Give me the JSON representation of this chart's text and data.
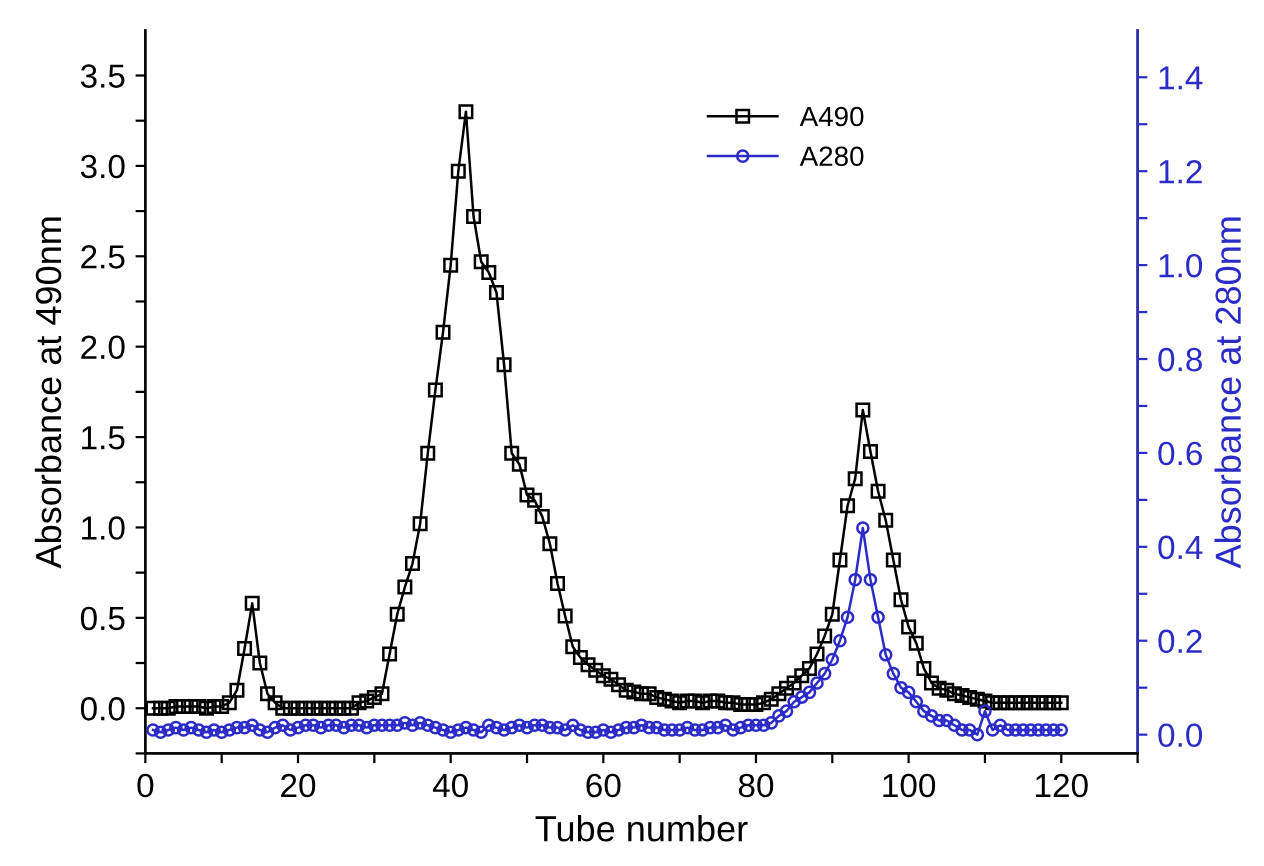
{
  "chart_data": {
    "type": "line",
    "xlabel": "Tube number",
    "ylabel": "Absorbance at 490nm",
    "y2label": "Absorbance at 280nm",
    "x": [
      1,
      2,
      3,
      4,
      5,
      6,
      7,
      8,
      9,
      10,
      11,
      12,
      13,
      14,
      15,
      16,
      17,
      18,
      19,
      20,
      21,
      22,
      23,
      24,
      25,
      26,
      27,
      28,
      29,
      30,
      31,
      32,
      33,
      34,
      35,
      36,
      37,
      38,
      39,
      40,
      41,
      42,
      43,
      44,
      45,
      46,
      47,
      48,
      49,
      50,
      51,
      52,
      53,
      54,
      55,
      56,
      57,
      58,
      59,
      60,
      61,
      62,
      63,
      64,
      65,
      66,
      67,
      68,
      69,
      70,
      71,
      72,
      73,
      74,
      75,
      76,
      77,
      78,
      79,
      80,
      81,
      82,
      83,
      84,
      85,
      86,
      87,
      88,
      89,
      90,
      91,
      92,
      93,
      94,
      95,
      96,
      97,
      98,
      99,
      100,
      101,
      102,
      103,
      104,
      105,
      106,
      107,
      108,
      109,
      110,
      111,
      112,
      113,
      114,
      115,
      116,
      117,
      118,
      119,
      120
    ],
    "series": [
      {
        "name": "A490",
        "color": "#000000",
        "marker": "square",
        "values": [
          0.0,
          0.0,
          0.0,
          0.01,
          0.01,
          0.01,
          0.01,
          0.0,
          0.01,
          0.01,
          0.03,
          0.1,
          0.33,
          0.58,
          0.25,
          0.08,
          0.03,
          0.0,
          0.0,
          0.0,
          0.0,
          0.0,
          0.0,
          0.0,
          0.0,
          0.0,
          0.0,
          0.03,
          0.04,
          0.06,
          0.08,
          0.3,
          0.52,
          0.67,
          0.8,
          1.02,
          1.41,
          1.76,
          2.08,
          2.45,
          2.97,
          3.3,
          2.72,
          2.47,
          2.41,
          2.3,
          1.9,
          1.41,
          1.35,
          1.18,
          1.15,
          1.06,
          0.91,
          0.69,
          0.51,
          0.34,
          0.28,
          0.24,
          0.21,
          0.18,
          0.16,
          0.13,
          0.1,
          0.09,
          0.08,
          0.08,
          0.06,
          0.05,
          0.04,
          0.03,
          0.04,
          0.04,
          0.03,
          0.04,
          0.04,
          0.03,
          0.03,
          0.02,
          0.02,
          0.02,
          0.03,
          0.05,
          0.08,
          0.11,
          0.14,
          0.18,
          0.22,
          0.3,
          0.4,
          0.52,
          0.82,
          1.12,
          1.27,
          1.65,
          1.42,
          1.2,
          1.04,
          0.82,
          0.6,
          0.45,
          0.36,
          0.22,
          0.14,
          0.11,
          0.1,
          0.08,
          0.07,
          0.06,
          0.05,
          0.04,
          0.03,
          0.03,
          0.03,
          0.03,
          0.03,
          0.03,
          0.03,
          0.03,
          0.03,
          0.03
        ]
      },
      {
        "name": "A280",
        "color": "#2b2bc8",
        "marker": "circle",
        "axis": "y2",
        "values": [
          0.01,
          0.005,
          0.01,
          0.015,
          0.01,
          0.015,
          0.01,
          0.005,
          0.01,
          0.005,
          0.01,
          0.015,
          0.015,
          0.02,
          0.01,
          0.005,
          0.015,
          0.02,
          0.01,
          0.015,
          0.02,
          0.02,
          0.015,
          0.02,
          0.02,
          0.015,
          0.02,
          0.02,
          0.015,
          0.02,
          0.02,
          0.02,
          0.02,
          0.025,
          0.02,
          0.025,
          0.02,
          0.015,
          0.01,
          0.005,
          0.01,
          0.015,
          0.01,
          0.005,
          0.02,
          0.015,
          0.01,
          0.015,
          0.02,
          0.015,
          0.02,
          0.02,
          0.015,
          0.015,
          0.01,
          0.02,
          0.01,
          0.005,
          0.005,
          0.01,
          0.005,
          0.01,
          0.015,
          0.015,
          0.02,
          0.015,
          0.015,
          0.01,
          0.01,
          0.01,
          0.015,
          0.01,
          0.01,
          0.015,
          0.015,
          0.02,
          0.01,
          0.015,
          0.02,
          0.02,
          0.02,
          0.025,
          0.04,
          0.05,
          0.07,
          0.08,
          0.09,
          0.11,
          0.13,
          0.16,
          0.2,
          0.25,
          0.33,
          0.44,
          0.33,
          0.25,
          0.17,
          0.13,
          0.1,
          0.09,
          0.07,
          0.05,
          0.04,
          0.03,
          0.03,
          0.02,
          0.01,
          0.01,
          0.0,
          0.05,
          0.01,
          0.02,
          0.01,
          0.01,
          0.01,
          0.01,
          0.01,
          0.01,
          0.01,
          0.01
        ]
      }
    ],
    "xlim": [
      0,
      130
    ],
    "xticks": [
      0,
      {
        "value": 10,
        "label": null
      },
      20,
      {
        "value": 30,
        "label": null
      },
      40,
      {
        "value": 50,
        "label": null
      },
      60,
      {
        "value": 70,
        "label": null
      },
      80,
      {
        "value": 90,
        "label": null
      },
      100,
      {
        "value": 110,
        "label": null
      },
      120,
      {
        "value": 130,
        "label": null
      }
    ],
    "ylim": [
      -0.25,
      3.75
    ],
    "yticks": [
      {
        "value": -0.25,
        "label": null
      },
      {
        "value": 0,
        "label": "0.0"
      },
      {
        "value": 0.25,
        "label": null
      },
      0.5,
      {
        "value": 0.75,
        "label": null
      },
      {
        "value": 1,
        "label": "1.0"
      },
      {
        "value": 1.25,
        "label": null
      },
      1.5,
      {
        "value": 1.75,
        "label": null
      },
      {
        "value": 2,
        "label": "2.0"
      },
      {
        "value": 2.25,
        "label": null
      },
      2.5,
      {
        "value": 2.75,
        "label": null
      },
      {
        "value": 3,
        "label": "3.0"
      },
      {
        "value": 3.25,
        "label": null
      },
      3.5
    ],
    "y2lim": [
      -0.04,
      1.5
    ],
    "y2ticks": [
      {
        "value": 0,
        "label": "0.0"
      },
      {
        "value": 0.1,
        "label": null
      },
      0.2,
      {
        "value": 0.3,
        "label": null
      },
      0.4,
      {
        "value": 0.5,
        "label": null
      },
      0.6,
      {
        "value": 0.7,
        "label": null
      },
      0.8,
      {
        "value": 0.9,
        "label": null
      },
      {
        "value": 1,
        "label": "1.0"
      },
      {
        "value": 1.1,
        "label": null
      },
      1.2,
      {
        "value": 1.3,
        "label": null
      },
      1.4
    ],
    "grid": false,
    "legend": "top right",
    "line_style": "solid"
  }
}
